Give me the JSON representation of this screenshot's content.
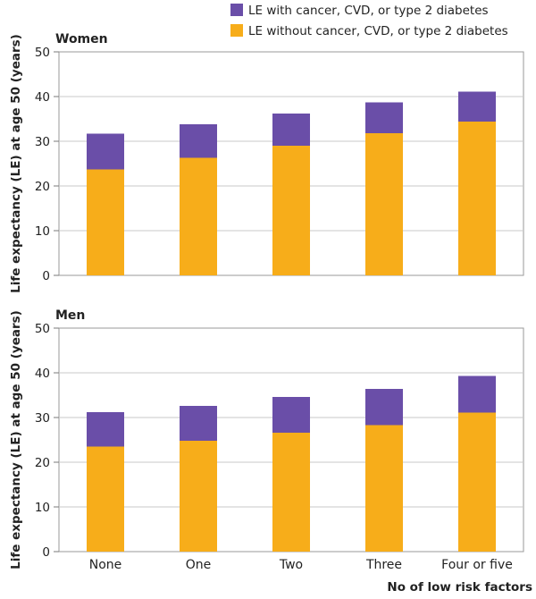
{
  "legend": [
    {
      "label": "LE with cancer, CVD, or type 2 diabetes",
      "color": "#6a4ea8"
    },
    {
      "label": "LE without cancer, CVD, or type 2 diabetes",
      "color": "#f7ad1a"
    }
  ],
  "axis_common": {
    "ylabel": "Life expectancy (LE) at age 50 (years)",
    "xlabel": "No of low risk factors"
  },
  "colors": {
    "grid": "#c9c9c9",
    "axis": "#7a7a7a",
    "panel_border": "#9a9a9a"
  },
  "chart_data": [
    {
      "type": "bar",
      "stacked": true,
      "title": "Women",
      "categories": [
        "None",
        "One",
        "Two",
        "Three",
        "Four or five"
      ],
      "series": [
        {
          "name": "LE without cancer, CVD, or type 2 diabetes",
          "values": [
            23.7,
            26.3,
            29.0,
            31.8,
            34.4
          ]
        },
        {
          "name": "LE with cancer, CVD, or type 2 diabetes",
          "values": [
            8.0,
            7.5,
            7.2,
            6.9,
            6.7
          ]
        }
      ],
      "ylim": [
        0,
        50
      ],
      "yticks": [
        "0",
        "10",
        "20",
        "30",
        "40",
        "50"
      ],
      "grid": true
    },
    {
      "type": "bar",
      "stacked": true,
      "title": "Men",
      "categories": [
        "None",
        "One",
        "Two",
        "Three",
        "Four or five"
      ],
      "series": [
        {
          "name": "LE without cancer, CVD, or type 2 diabetes",
          "values": [
            23.5,
            24.8,
            26.6,
            28.3,
            31.1
          ]
        },
        {
          "name": "LE with cancer, CVD, or type 2 diabetes",
          "values": [
            7.7,
            7.8,
            8.0,
            8.1,
            8.2
          ]
        }
      ],
      "ylim": [
        0,
        50
      ],
      "yticks": [
        "0",
        "10",
        "20",
        "30",
        "40",
        "50"
      ],
      "grid": true
    }
  ]
}
